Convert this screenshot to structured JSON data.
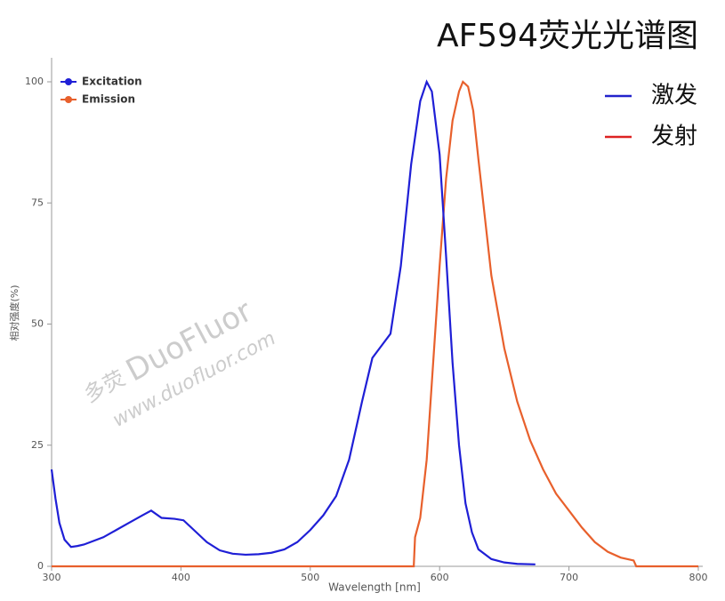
{
  "chart_data": {
    "type": "line",
    "title": "AF594荧光光谱图",
    "x_label": "Wavelength [nm]",
    "y_label": "相对强度(%)",
    "xlim": [
      300,
      800
    ],
    "xticks": [
      300,
      400,
      500,
      600,
      700,
      800
    ],
    "ylim": [
      0,
      100
    ],
    "yticks": [
      0,
      25,
      50,
      75,
      100
    ],
    "series": [
      {
        "name": "Excitation",
        "color": "#1f1fd6",
        "x": [
          300,
          303,
          306,
          310,
          315,
          320,
          325,
          330,
          340,
          350,
          360,
          370,
          377,
          385,
          395,
          402,
          410,
          420,
          430,
          440,
          450,
          460,
          470,
          480,
          490,
          500,
          510,
          520,
          530,
          540,
          548,
          555,
          562,
          570,
          578,
          585,
          590,
          594,
          600,
          605,
          610,
          615,
          620,
          625,
          630,
          640,
          650,
          660,
          674
        ],
        "values": [
          20,
          14,
          9,
          5.5,
          4,
          4.2,
          4.5,
          5,
          6,
          7.5,
          9,
          10.5,
          11.5,
          10,
          9.8,
          9.5,
          7.5,
          5,
          3.3,
          2.6,
          2.4,
          2.5,
          2.8,
          3.5,
          5,
          7.5,
          10.5,
          14.5,
          22,
          34,
          43,
          45.5,
          48,
          62,
          83,
          96,
          100,
          98,
          85,
          64,
          42,
          25,
          13,
          7,
          3.5,
          1.5,
          0.8,
          0.5,
          0.4
        ]
      },
      {
        "name": "Emission",
        "color": "#e8602c",
        "x": [
          300,
          580,
          581,
          585,
          590,
          595,
          600,
          605,
          610,
          615,
          618,
          622,
          626,
          630,
          640,
          650,
          660,
          670,
          680,
          690,
          700,
          710,
          720,
          730,
          740,
          750,
          752,
          800
        ],
        "values": [
          0,
          0,
          6,
          10,
          22,
          42,
          62,
          80,
          92,
          98,
          100,
          99,
          94,
          84,
          60,
          45,
          34,
          26,
          20,
          15,
          11.5,
          8,
          5,
          3,
          1.8,
          1.2,
          0,
          0
        ]
      }
    ],
    "legend": "upper left",
    "legend2": [
      {
        "label": "激发",
        "color": "#2222cc"
      },
      {
        "label": "发射",
        "color": "#dd2222"
      }
    ],
    "watermark": [
      "多荧",
      "DuoFluor",
      "www.duofluor.com"
    ]
  }
}
